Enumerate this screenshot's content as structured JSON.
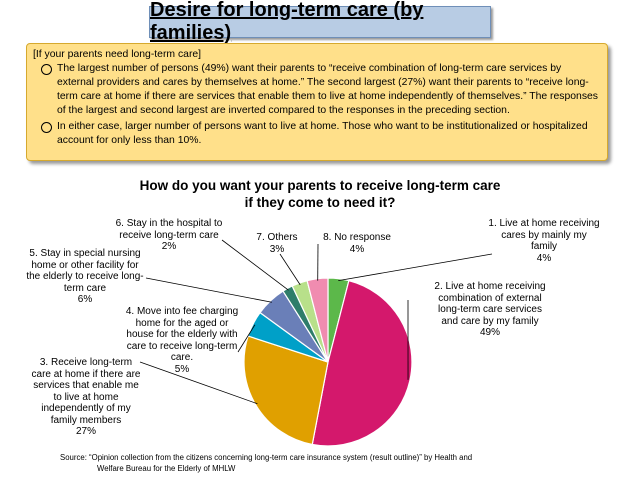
{
  "header": {
    "title": "Desire for long-term care (by families)"
  },
  "notes": {
    "intro": "[If your parents need long-term care]",
    "bullets": [
      "The largest number of persons (49%) want their parents to “receive combination of long-term care services by external providers and cares by themselves at home.” The second largest (27%) want their parents to “receive long-term care at home if there are services that enable them to live at home independently of themselves.” The responses of the largest and second largest are inverted compared to the responses in the preceding section.",
      "In either case, larger number of persons want to live at home. Those who want to be institutionalized or hospitalized account for only less than 10%."
    ]
  },
  "chart_data": {
    "type": "pie",
    "title_line1": "How do you want your parents to receive long-term care",
    "title_line2": "if they come to need it?",
    "slices": [
      {
        "label": "1. Live at home receiving cares by mainly  my family",
        "value": 4,
        "value_label": "4%",
        "color": "#5cb84a"
      },
      {
        "label": "2. Live at home receiving combination of external long-term care services and care by my family",
        "value": 49,
        "value_label": "49%",
        "color": "#d4186c"
      },
      {
        "label": "3. Receive long-term care at home if there are services that enable me to live at home independently of my family members",
        "value": 27,
        "value_label": "27%",
        "color": "#e0a000"
      },
      {
        "label": "4. Move into fee charging home for the aged  or house for the elderly with care to receive long-term care.",
        "value": 5,
        "value_label": "5%",
        "color": "#00a0c8"
      },
      {
        "label": "5. Stay in special nursing home or other facility for the elderly to receive long-term care",
        "value": 6,
        "value_label": "6%",
        "color": "#6a7fb8"
      },
      {
        "label": "6. Stay in the hospital to receive long-term care",
        "value": 2,
        "value_label": "2%",
        "color": "#2e7d6a"
      },
      {
        "label": "7. Others",
        "value": 3,
        "value_label": "3%",
        "color": "#b8e08a"
      },
      {
        "label": "8. No response",
        "value": 4,
        "value_label": "4%",
        "color": "#f08cb0"
      }
    ],
    "legend": "none"
  },
  "source": {
    "line1": "Source:    “Opinion collection from the citizens concerning long-term care insurance system (result outline)” by Health and",
    "line2": "Welfare Bureau for the Elderly of MHLW"
  }
}
